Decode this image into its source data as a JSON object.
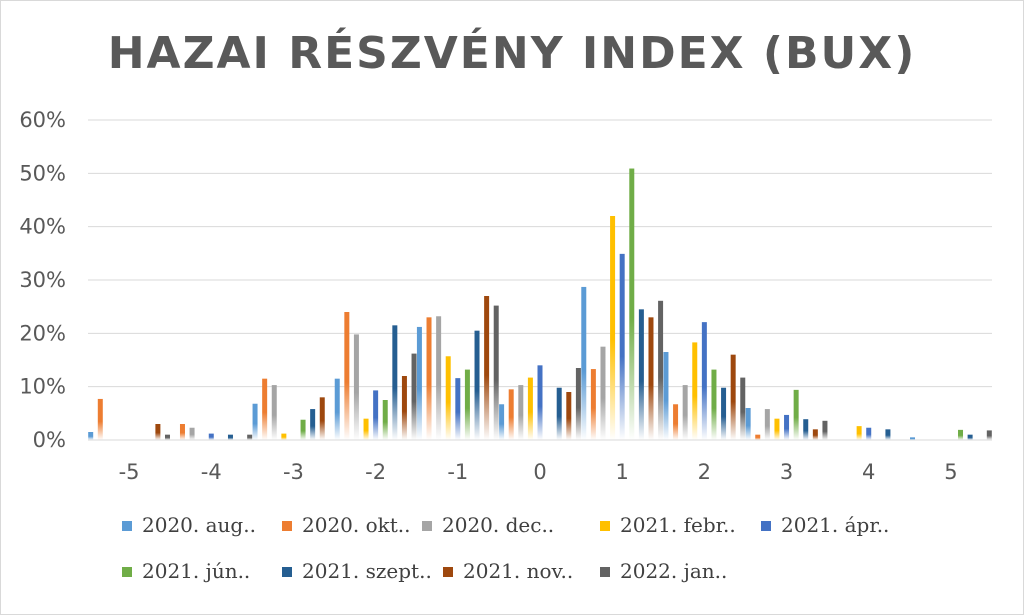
{
  "chart_data": {
    "type": "bar",
    "title": "HAZAI RÉSZVÉNY INDEX (BUX)",
    "xlabel": "",
    "ylabel": "",
    "ylim": [
      0,
      0.6
    ],
    "yticks": [
      0,
      0.1,
      0.2,
      0.3,
      0.4,
      0.5,
      0.6
    ],
    "ytick_labels": [
      "0%",
      "10%",
      "20%",
      "30%",
      "40%",
      "50%",
      "60%"
    ],
    "grid": true,
    "legend_position": "bottom",
    "categories": [
      "-5",
      "-4",
      "-3",
      "-2",
      "-1",
      "0",
      "1",
      "2",
      "3",
      "4",
      "5"
    ],
    "series": [
      {
        "name": "2020. aug..",
        "color": "#5B9BD5",
        "values": [
          0.015,
          0.0,
          0.068,
          0.115,
          0.212,
          0.067,
          0.287,
          0.165,
          0.06,
          0.0,
          0.005
        ]
      },
      {
        "name": "2020. okt..",
        "color": "#ED7D31",
        "values": [
          0.077,
          0.03,
          0.115,
          0.24,
          0.23,
          0.095,
          0.133,
          0.067,
          0.01,
          0.0,
          0.0
        ]
      },
      {
        "name": "2020. dec..",
        "color": "#A5A5A5",
        "values": [
          0.0,
          0.023,
          0.103,
          0.198,
          0.232,
          0.103,
          0.175,
          0.103,
          0.058,
          0.0,
          0.0
        ]
      },
      {
        "name": "2021. febr..",
        "color": "#FFC000",
        "values": [
          0.0,
          0.0,
          0.012,
          0.04,
          0.157,
          0.117,
          0.42,
          0.183,
          0.04,
          0.026,
          0.0
        ]
      },
      {
        "name": "2021. ápr..",
        "color": "#4472C4",
        "values": [
          0.0,
          0.012,
          0.0,
          0.093,
          0.116,
          0.14,
          0.349,
          0.221,
          0.047,
          0.023,
          0.0
        ]
      },
      {
        "name": "2021. jún..",
        "color": "#70AD47",
        "values": [
          0.0,
          0.0,
          0.038,
          0.075,
          0.132,
          0.0,
          0.509,
          0.132,
          0.094,
          0.0,
          0.019
        ]
      },
      {
        "name": "2021. szept..",
        "color": "#255E91",
        "values": [
          0.0,
          0.01,
          0.058,
          0.215,
          0.205,
          0.098,
          0.245,
          0.098,
          0.039,
          0.02,
          0.01
        ]
      },
      {
        "name": "2021. nov..",
        "color": "#9E480E",
        "values": [
          0.03,
          0.0,
          0.08,
          0.12,
          0.27,
          0.09,
          0.23,
          0.16,
          0.02,
          0.0,
          0.0
        ]
      },
      {
        "name": "2022. jan..",
        "color": "#636363",
        "values": [
          0.01,
          0.01,
          0.0,
          0.162,
          0.252,
          0.135,
          0.261,
          0.117,
          0.036,
          0.0,
          0.018
        ]
      }
    ]
  }
}
